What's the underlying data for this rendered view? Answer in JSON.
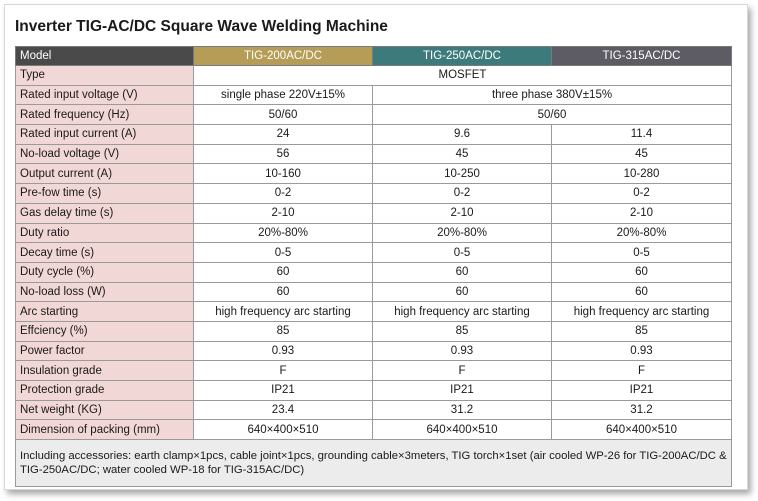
{
  "title": "Inverter TIG-AC/DC Square Wave Welding Machine",
  "header": {
    "label": "Model",
    "models": [
      "TIG-200AC/DC",
      "TIG-250AC/DC",
      "TIG-315AC/DC"
    ]
  },
  "rows": [
    {
      "label": "Type",
      "span": 3,
      "values": [
        "MOSFET"
      ]
    },
    {
      "label": "Rated input voltage (V)",
      "span": "1-2",
      "values": [
        "single phase 220V±15%",
        "three phase 380V±15%"
      ]
    },
    {
      "label": "Rated frequency (Hz)",
      "span": "1-2",
      "values": [
        "50/60",
        "50/60"
      ]
    },
    {
      "label": "Rated input current (A)",
      "values": [
        "24",
        "9.6",
        "11.4"
      ]
    },
    {
      "label": "No-load voltage (V)",
      "values": [
        "56",
        "45",
        "45"
      ]
    },
    {
      "label": "Output current (A)",
      "values": [
        "10-160",
        "10-250",
        "10-280"
      ]
    },
    {
      "label": "Pre-fow time (s)",
      "values": [
        "0-2",
        "0-2",
        "0-2"
      ]
    },
    {
      "label": "Gas delay time (s)",
      "values": [
        "2-10",
        "2-10",
        "2-10"
      ]
    },
    {
      "label": "Duty ratio",
      "values": [
        "20%-80%",
        "20%-80%",
        "20%-80%"
      ]
    },
    {
      "label": "Decay time (s)",
      "values": [
        "0-5",
        "0-5",
        "0-5"
      ]
    },
    {
      "label": "Duty cycle (%)",
      "values": [
        "60",
        "60",
        "60"
      ]
    },
    {
      "label": "No-load loss (W)",
      "values": [
        "60",
        "60",
        "60"
      ]
    },
    {
      "label": "Arc starting",
      "values": [
        "high frequency arc starting",
        "high frequency arc starting",
        "high frequency arc starting"
      ]
    },
    {
      "label": "Effciency (%)",
      "values": [
        "85",
        "85",
        "85"
      ]
    },
    {
      "label": "Power factor",
      "values": [
        "0.93",
        "0.93",
        "0.93"
      ]
    },
    {
      "label": "Insulation grade",
      "values": [
        "F",
        "F",
        "F"
      ]
    },
    {
      "label": "Protection grade",
      "values": [
        "IP21",
        "IP21",
        "IP21"
      ]
    },
    {
      "label": "Net weight (KG)",
      "values": [
        "23.4",
        "31.2",
        "31.2"
      ]
    },
    {
      "label": "Dimension of packing (mm)",
      "values": [
        "640×400×510",
        "640×400×510",
        "640×400×510"
      ]
    }
  ],
  "accessories": "Including accessories: earth clamp×1pcs, cable joint×1pcs, grounding cable×3meters, TIG torch×1set (air cooled WP-26 for TIG-200AC/DC & TIG-250AC/DC; water cooled WP-18 for TIG-315AC/DC)",
  "colors": {
    "label_bg": "#f1d7d5",
    "header_label": "#4a4a4a",
    "header_1": "#b59c57",
    "header_2": "#3c7a7c",
    "header_3": "#5d5b63"
  }
}
